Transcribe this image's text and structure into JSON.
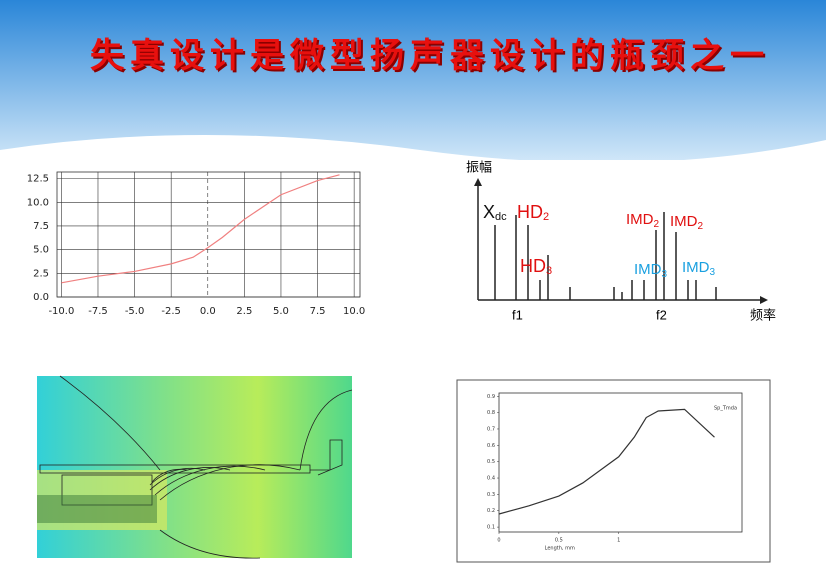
{
  "title": "失真设计是微型扬声器设计的瓶颈之一",
  "spectrum_diagram": {
    "y_label": "振幅",
    "x_label": "频率",
    "markers": [
      "f1",
      "f2"
    ],
    "labels": [
      {
        "text": "X",
        "sub": "dc"
      },
      {
        "text": "HD",
        "sub": "2"
      },
      {
        "text": "HD",
        "sub": "3"
      },
      {
        "text": "IMD",
        "sub": "2"
      },
      {
        "text": "IMD",
        "sub": "2"
      },
      {
        "text": "IMD",
        "sub": "3"
      },
      {
        "text": "IMD",
        "sub": "3"
      }
    ]
  },
  "chart_data": [
    {
      "type": "line",
      "xlim": [
        -10.3,
        10.4
      ],
      "ylim": [
        0,
        13.2
      ],
      "xticks": [
        {
          "value": -10,
          "label": "-10.0"
        },
        -7.5,
        {
          "value": -5,
          "label": "-5.0"
        },
        -2.5,
        {
          "value": 0,
          "label": "0.0"
        },
        2.5,
        {
          "value": 5,
          "label": "5.0"
        },
        7.5,
        {
          "value": 10,
          "label": "10.0"
        }
      ],
      "yticks": [
        {
          "value": 0,
          "label": "0.0"
        },
        2.5,
        {
          "value": 5,
          "label": "5.0"
        },
        7.5,
        {
          "value": 10,
          "label": "10.0"
        },
        12.5
      ],
      "grid": true,
      "zero_line_dashed": true,
      "x": [
        -10,
        -7.5,
        -5,
        -2.5,
        -1,
        0,
        1,
        2.5,
        5,
        7.5,
        9
      ],
      "series": [
        {
          "color": "#f08080",
          "values": [
            1.5,
            2.2,
            2.7,
            3.5,
            4.2,
            5.2,
            6.3,
            8.2,
            10.8,
            12.3,
            12.9
          ]
        }
      ]
    },
    {
      "type": "line",
      "xlim": [
        0,
        2.03
      ],
      "ylim": [
        0.07,
        0.92
      ],
      "xticks": [
        0,
        0.5,
        1
      ],
      "yticks": [
        0.1,
        0.2,
        0.3,
        0.4,
        0.5,
        0.6,
        0.7,
        0.8,
        0.9
      ],
      "grid": false,
      "x_label": "Length, mm",
      "x": [
        0,
        0.25,
        0.5,
        0.7,
        0.85,
        1.0,
        1.13,
        1.23,
        1.33,
        1.55,
        1.8
      ],
      "series": [
        {
          "name": "Sp_Tmda",
          "color": "#333333",
          "values": [
            0.18,
            0.23,
            0.29,
            0.37,
            0.45,
            0.53,
            0.65,
            0.77,
            0.81,
            0.82,
            0.65
          ]
        }
      ]
    }
  ]
}
